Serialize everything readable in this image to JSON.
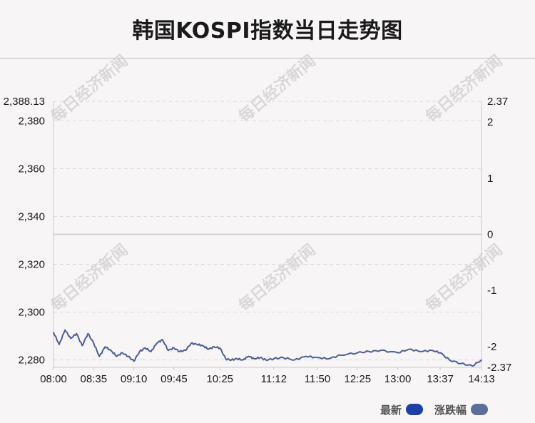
{
  "title": "韩国KOSPI指数当日走势图",
  "watermark": "每日经济新闻",
  "legend": [
    {
      "label": "最新",
      "color": "#1d3fa8"
    },
    {
      "label": "涨跌幅",
      "color": "#5b6f9c"
    }
  ],
  "colors": {
    "line": "#4a5f95",
    "zero_line": "#c9c9c9",
    "grid": "#d9d9d9",
    "axis": "#c8c8c8"
  },
  "chart_data": {
    "type": "line",
    "x_ticks": [
      "08:00",
      "08:35",
      "09:10",
      "09:45",
      "10:25",
      "11:12",
      "11:50",
      "12:25",
      "13:00",
      "13:37",
      "14:13"
    ],
    "left_axis": {
      "ticks": [
        "2,388.13",
        "2,380",
        "2,360",
        "2,340",
        "2,320",
        "2,300",
        "2,280"
      ],
      "range": [
        2276.9,
        2388.13
      ]
    },
    "right_axis": {
      "ticks": [
        "2.37",
        "2",
        "1",
        "0",
        "-1",
        "-2",
        "-2.37"
      ],
      "range": [
        -2.37,
        2.37
      ]
    },
    "grid": "horizontal dashed",
    "legend_position": "bottom-right",
    "series": [
      {
        "name": "最新",
        "x": [
          "08:00",
          "08:05",
          "08:10",
          "08:15",
          "08:20",
          "08:25",
          "08:30",
          "08:35",
          "08:40",
          "08:45",
          "08:50",
          "08:55",
          "09:00",
          "09:05",
          "09:10",
          "09:15",
          "09:20",
          "09:25",
          "09:30",
          "09:35",
          "09:40",
          "09:45",
          "09:50",
          "09:55",
          "10:00",
          "10:05",
          "10:10",
          "10:15",
          "10:20",
          "10:25",
          "10:30",
          "10:35",
          "10:40",
          "10:45",
          "10:50",
          "10:55",
          "11:00",
          "11:05",
          "11:12",
          "11:20",
          "11:30",
          "11:40",
          "11:50",
          "12:00",
          "12:10",
          "12:25",
          "12:35",
          "12:45",
          "13:00",
          "13:10",
          "13:20",
          "13:30",
          "13:37",
          "13:45",
          "13:55",
          "14:05",
          "14:13"
        ],
        "values": [
          2291.5,
          2286.5,
          2292.5,
          2289.0,
          2291.0,
          2286.0,
          2291.0,
          2287.0,
          2281.5,
          2285.5,
          2284.0,
          2281.5,
          2283.0,
          2281.5,
          2279.5,
          2283.5,
          2285.0,
          2283.5,
          2287.0,
          2288.5,
          2284.0,
          2285.0,
          2283.5,
          2284.0,
          2287.0,
          2286.5,
          2286.0,
          2284.5,
          2285.5,
          2285.0,
          2280.5,
          2280.0,
          2280.5,
          2280.0,
          2281.5,
          2280.5,
          2281.0,
          2280.0,
          2280.5,
          2281.0,
          2280.0,
          2281.5,
          2281.0,
          2280.5,
          2282.0,
          2283.0,
          2283.5,
          2284.0,
          2283.0,
          2284.5,
          2283.5,
          2284.0,
          2283.0,
          2280.0,
          2278.5,
          2277.5,
          2280.0
        ]
      }
    ]
  }
}
